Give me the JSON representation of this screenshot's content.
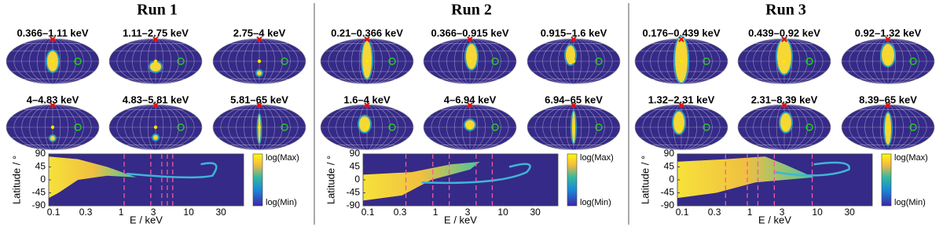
{
  "runs": [
    {
      "title": "Run 1",
      "maps": [
        "0.366–1.11 keV",
        "1.11–2.75 keV",
        "2.75–4 keV",
        "4–4.83 keV",
        "4.83–5.81 keV",
        "5.81–65 keV"
      ],
      "plot": {
        "ylabel": "Latitude / °",
        "xlabel": "E / keV",
        "xscale": "log",
        "xlim": [
          0.085,
          65
        ],
        "ylim": [
          -90,
          90
        ],
        "xticks": [
          0.1,
          0.3,
          1,
          3,
          10,
          30
        ],
        "yticks": [
          90,
          45,
          0,
          -45,
          -90
        ],
        "boundaries": [
          1.11,
          2.75,
          4,
          4.83,
          5.81
        ],
        "colorbar": {
          "max": "log(Max)",
          "min": "log(Min)"
        }
      }
    },
    {
      "title": "Run 2",
      "maps": [
        "0.21–0.366 keV",
        "0.366–0.915 keV",
        "0.915–1.6 keV",
        "1.6–4 keV",
        "4–6.94 keV",
        "6.94–65 keV"
      ],
      "plot": {
        "ylabel": "Latitude / °",
        "xlabel": "E / keV",
        "xscale": "log",
        "xlim": [
          0.085,
          65
        ],
        "ylim": [
          -90,
          90
        ],
        "xticks": [
          0.1,
          0.3,
          1,
          3,
          10,
          30
        ],
        "yticks": [
          90,
          45,
          0,
          -45,
          -90
        ],
        "boundaries": [
          0.366,
          0.915,
          1.6,
          4,
          6.94
        ],
        "colorbar": {
          "max": "log(Max)",
          "min": "log(Min)"
        }
      }
    },
    {
      "title": "Run 3",
      "maps": [
        "0.176–0.439 keV",
        "0.439–0.92 keV",
        "0.92–1.32 keV",
        "1.32–2.31 keV",
        "2.31–8.39 keV",
        "8.39–65 keV"
      ],
      "plot": {
        "ylabel": "Latitude / °",
        "xlabel": "E / keV",
        "xscale": "log",
        "xlim": [
          0.085,
          65
        ],
        "ylim": [
          -90,
          90
        ],
        "xticks": [
          0.1,
          0.3,
          1,
          3,
          10,
          30
        ],
        "yticks": [
          90,
          45,
          0,
          -45,
          -90
        ],
        "boundaries": [
          0.439,
          0.92,
          1.32,
          2.31,
          8.39
        ],
        "colorbar": {
          "max": "log(Max)",
          "min": "log(Min)"
        }
      }
    }
  ]
}
